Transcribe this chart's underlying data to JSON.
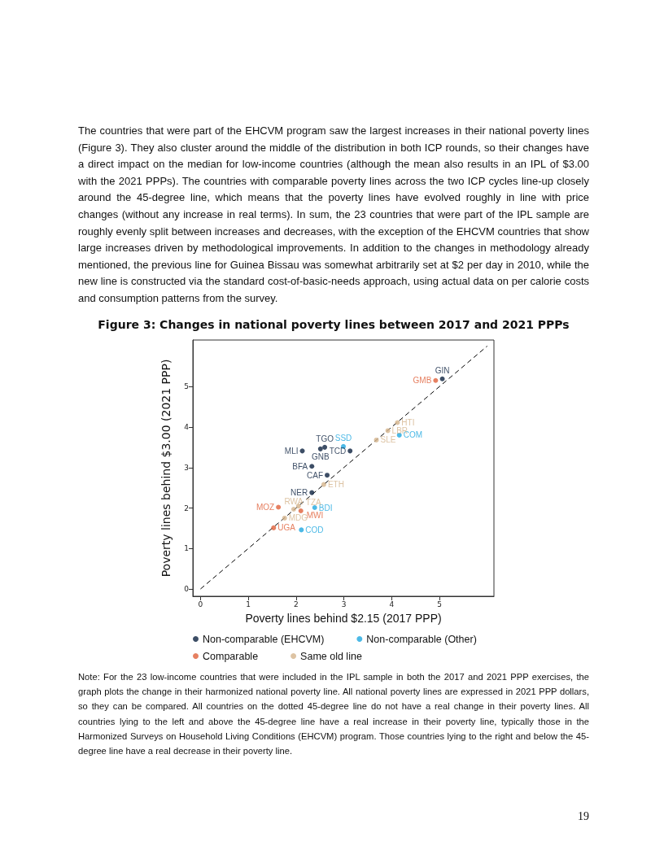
{
  "chart_data": {
    "type": "scatter",
    "title": "Figure 3: Changes in national poverty lines between 2017 and 2021 PPPs",
    "xlabel": "Poverty lines behind $2.15 (2017 PPP)",
    "ylabel": "Poverty lines behind $3.00 (2021 PPP)",
    "annotations": [
      "The countries that were part of the EHCVM program saw the largest increases in their national poverty lines (Figure 3). They also cluster around the middle of the distribution in both ICP rounds, so their changes have a direct impact on the median for low-income countries (although the mean also results in an IPL of $3.00 with the 2021 PPPs). The countries with comparable poverty lines across the two ICP cycles line-up closely around the 45-degree line, which means that the poverty lines have evolved roughly in line with price changes (without any increase in real terms). In sum, the 23 countries that were part of the IPL sample are roughly evenly split between increases and decreases, with the exception of the EHCVM countries that show large increases driven by methodological improvements. In addition to the changes in methodology already mentioned, the previous line for Guinea Bissau was somewhat arbitrarily set at $2 per day in 2010, while the new line is constructed via the standard cost-of-basic-needs approach, using actual data on per calorie costs and consumption patterns from the survey.",
      "Note: For the 23 low-income countries that were included in the IPL sample in both the 2017 and 2021 PPP exercises, the graph plots the change in their harmonized national poverty line. All national poverty lines are expressed in 2021 PPP dollars, so they can be compared. All countries on the dotted 45-degree line do not have a real change in their poverty lines. All countries lying to the left and above the 45-degree line have a real increase in their poverty line, typically those in the Harmonized Surveys on Household Living Conditions (EHCVM) program. Those countries lying to the right and below the 45-degree line have a real decrease in their poverty line.",
      "19"
    ],
    "xlim": [
      -0.16,
      6.14
    ],
    "ylim": [
      -0.18,
      6.15
    ],
    "xticks": [
      0,
      1,
      2,
      3,
      4,
      5
    ],
    "yticks": [
      0,
      1,
      2,
      3,
      4,
      5
    ],
    "grid": false,
    "legend": "bottom",
    "marker": "circle",
    "series": [
      {
        "name": "Non-comparable (EHCVM)",
        "color": "#0d2240",
        "x": [
          5.06,
          2.6,
          2.51,
          3.13,
          2.13,
          2.33,
          2.65,
          2.33
        ],
        "values": [
          5.19,
          3.5,
          3.46,
          3.41,
          3.41,
          3.03,
          2.81,
          2.38
        ],
        "value_labels": [
          "GIN",
          "TGO",
          "GNB",
          "TCD",
          "MLI",
          "BFA",
          "CAF",
          "NER"
        ]
      },
      {
        "name": "Non-comparable (Other)",
        "color": "#1fa8e0",
        "x": [
          2.99,
          4.16,
          2.39,
          2.11
        ],
        "values": [
          3.52,
          3.8,
          2.01,
          1.46
        ],
        "value_labels": [
          "SSD",
          "COM",
          "BDI",
          "COD"
        ]
      },
      {
        "name": "Comparable",
        "color": "#e0603a",
        "x": [
          4.92,
          1.63,
          2.1,
          1.53
        ],
        "values": [
          5.15,
          2.02,
          1.93,
          1.51
        ],
        "value_labels": [
          "GMB",
          "MOZ",
          "MWI",
          "UGA"
        ]
      },
      {
        "name": "Same old line",
        "color": "#d4b48c",
        "x": [
          4.12,
          3.92,
          3.68,
          2.58,
          1.95,
          2.05,
          1.76
        ],
        "values": [
          4.11,
          3.91,
          3.68,
          2.58,
          1.97,
          2.05,
          1.75
        ],
        "value_labels": [
          "HTI",
          "LBR",
          "SLE",
          "ETH",
          "RWA",
          "TZA",
          "MDG"
        ]
      },
      {
        "type": "line",
        "color": "#000000",
        "line_style": "dashed",
        "marker": "none",
        "x": [
          0,
          6
        ],
        "values": [
          0,
          6
        ]
      }
    ]
  }
}
